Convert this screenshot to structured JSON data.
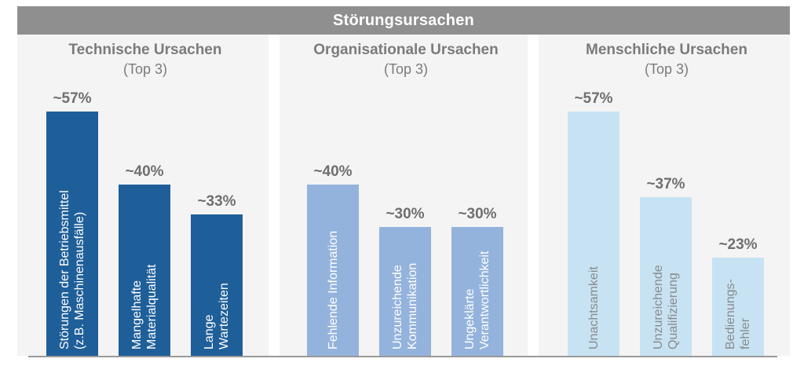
{
  "chart_data": {
    "type": "bar",
    "title": "Störungsursachen",
    "ylim": [
      0,
      57
    ],
    "groups": [
      {
        "title": "Technische Ursachen",
        "subtitle": "(Top 3)",
        "bar_color": "#1f5f99",
        "label_color": "#ffffff",
        "bars": [
          {
            "label": "Störungen der Betriebsmittel\n(z.B. Maschinenausfälle)",
            "value": 57,
            "value_label": "~57%"
          },
          {
            "label": "Mangelhafte\nMaterialqualität",
            "value": 40,
            "value_label": "~40%"
          },
          {
            "label": "Lange\nWartezeiten",
            "value": 33,
            "value_label": "~33%"
          }
        ]
      },
      {
        "title": "Organisationale Ursachen",
        "subtitle": "(Top 3)",
        "bar_color": "#94b3dc",
        "label_color": "#ffffff",
        "bars": [
          {
            "label": "Fehlende Information",
            "value": 40,
            "value_label": "~40%"
          },
          {
            "label": "Unzureichende\nKommunikation",
            "value": 30,
            "value_label": "~30%"
          },
          {
            "label": "Ungeklärte\nVerantwortlichkeit",
            "value": 30,
            "value_label": "~30%"
          }
        ]
      },
      {
        "title": "Menschliche Ursachen",
        "subtitle": "(Top 3)",
        "bar_color": "#c7e3f3",
        "label_color": "#8a8a8a",
        "bars": [
          {
            "label": "Unachtsamkeit",
            "value": 57,
            "value_label": "~57%"
          },
          {
            "label": "Unzureichende\nQualifizierung",
            "value": 37,
            "value_label": "~37%"
          },
          {
            "label": "Bedienungs-\nfehler",
            "value": 23,
            "value_label": "~23%"
          }
        ]
      }
    ]
  }
}
